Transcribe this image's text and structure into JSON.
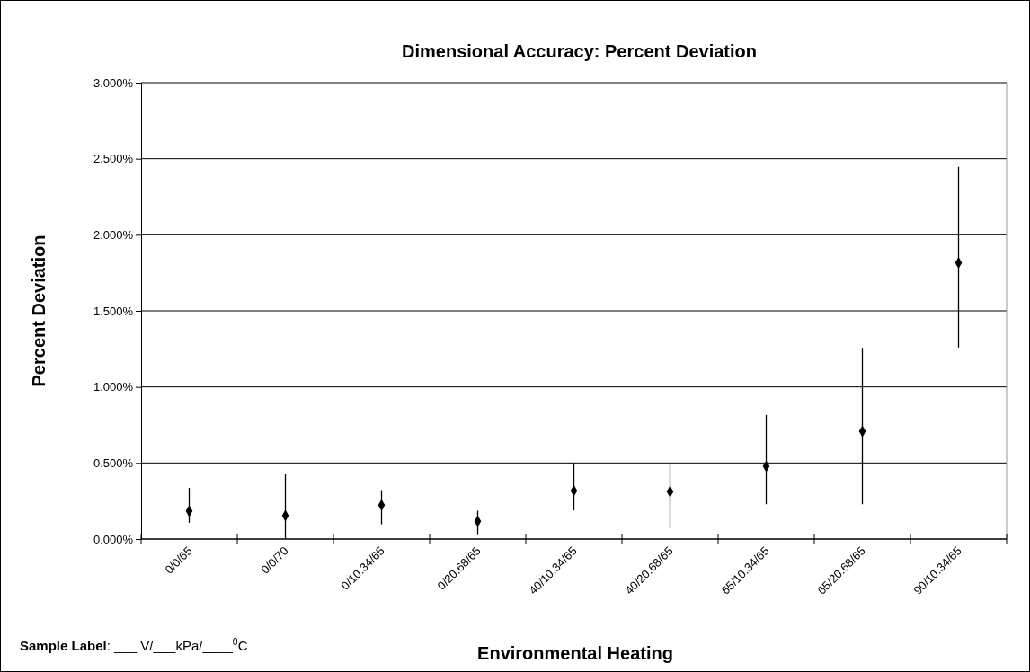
{
  "chart_data": {
    "type": "scatter",
    "title": "Dimensional Accuracy: Percent Deviation",
    "xlabel": "Environmental Heating",
    "ylabel": "Percent Deviation",
    "annotations": [
      "Sample Label: ___ V/___kPa/____$^{0}$C"
    ],
    "categories": [
      "0/0/65",
      "0/0/70",
      "0/10.34/65",
      "0/20.68/65",
      "40/10.34/65",
      "40/20.68/65",
      "65/10.34/65",
      "65/20.68/65",
      "90/10.34/65"
    ],
    "series": [
      {
        "color": "#000000",
        "values": [
          0.184,
          0.154,
          0.223,
          0.117,
          0.318,
          0.312,
          0.478,
          0.708,
          1.816
        ],
        "errors": [
          [
            0.107,
            0.336
          ],
          [
            0,
            0.425
          ],
          [
            0.097,
            0.322
          ],
          [
            0.032,
            0.186
          ],
          [
            0.188,
            0.5
          ],
          [
            0.069,
            0.5
          ],
          [
            0.229,
            0.816
          ],
          [
            0.229,
            1.257
          ],
          [
            1.259,
            2.447
          ]
        ]
      }
    ],
    "ylim": [
      0,
      3
    ],
    "yticks": [
      {
        "value": 0,
        "label": "0.000%"
      },
      {
        "value": 0.5,
        "label": "0.500%"
      },
      {
        "value": 1,
        "label": "1.000%"
      },
      {
        "value": 1.5,
        "label": "1.500%"
      },
      {
        "value": 2,
        "label": "2.000%"
      },
      {
        "value": 2.5,
        "label": "2.500%"
      },
      {
        "value": 3,
        "label": "3.000%"
      }
    ],
    "grid": "y",
    "marker": "diamond"
  }
}
